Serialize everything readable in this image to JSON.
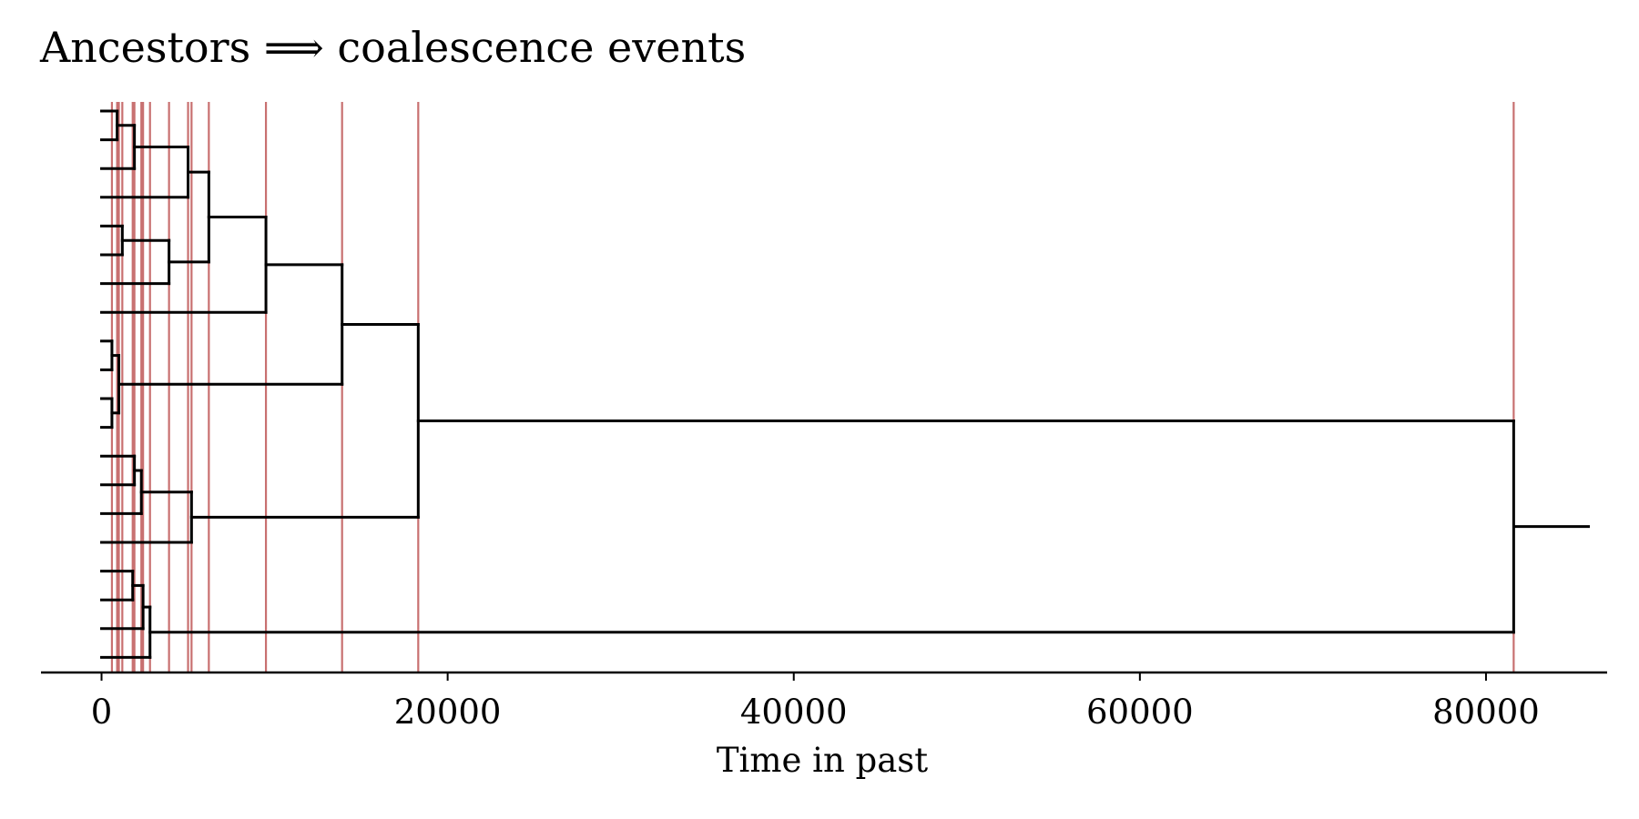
{
  "chart_data": {
    "type": "dendrogram",
    "title": "Ancestors ⟹ coalescence events",
    "xlabel": "Time in past",
    "ylabel": "",
    "xlim": [
      -3500,
      87000
    ],
    "xticks": [
      "0",
      "20000",
      "40000",
      "60000",
      "80000"
    ],
    "grid": false,
    "legend": "none",
    "colors": {
      "tree": "#000000",
      "event_lines": "#c87070"
    },
    "leaves": 20,
    "root_stub_end": 86000,
    "nodes": [
      {
        "time": 900,
        "children": [
          "leaf0",
          "leaf1"
        ],
        "y": 0.5
      },
      {
        "time": 1900,
        "children": [
          "node0",
          "leaf2"
        ],
        "y": 1.25
      },
      {
        "time": 5000,
        "children": [
          "node1",
          "leaf3"
        ],
        "y": 2.125
      },
      {
        "time": 1200,
        "children": [
          "leaf4",
          "leaf5"
        ],
        "y": 4.5
      },
      {
        "time": 3900,
        "children": [
          "node3",
          "leaf6"
        ],
        "y": 5.25
      },
      {
        "time": 6200,
        "children": [
          "node2",
          "node4"
        ],
        "y": 3.6875
      },
      {
        "time": 9500,
        "children": [
          "node5",
          "leaf7"
        ],
        "y": 5.34375
      },
      {
        "time": 600,
        "children": [
          "leaf8",
          "leaf9"
        ],
        "y": 8.5
      },
      {
        "time": 600,
        "children": [
          "leaf10",
          "leaf11"
        ],
        "y": 10.5
      },
      {
        "time": 1000,
        "children": [
          "node7",
          "node8"
        ],
        "y": 9.5
      },
      {
        "time": 13900,
        "children": [
          "node6",
          "node9"
        ],
        "y": 7.421875
      },
      {
        "time": 1900,
        "children": [
          "leaf12",
          "leaf13"
        ],
        "y": 12.5
      },
      {
        "time": 2300,
        "children": [
          "node11",
          "leaf14"
        ],
        "y": 13.25
      },
      {
        "time": 5200,
        "children": [
          "node12",
          "leaf15"
        ],
        "y": 14.125
      },
      {
        "time": 18300,
        "children": [
          "node10",
          "node13"
        ],
        "y": 10.7734375
      },
      {
        "time": 1800,
        "children": [
          "leaf16",
          "leaf17"
        ],
        "y": 16.5
      },
      {
        "time": 2400,
        "children": [
          "node15",
          "leaf18"
        ],
        "y": 17.25
      },
      {
        "time": 2800,
        "children": [
          "node16",
          "leaf19"
        ],
        "y": 18.125
      },
      {
        "time": 81600,
        "children": [
          "node14",
          "node17"
        ],
        "y": 14.44921875
      }
    ],
    "event_times": [
      600,
      900,
      1000,
      1200,
      1800,
      1900,
      2300,
      2400,
      2800,
      3900,
      5000,
      5200,
      6200,
      9500,
      13900,
      18300,
      81600
    ]
  }
}
